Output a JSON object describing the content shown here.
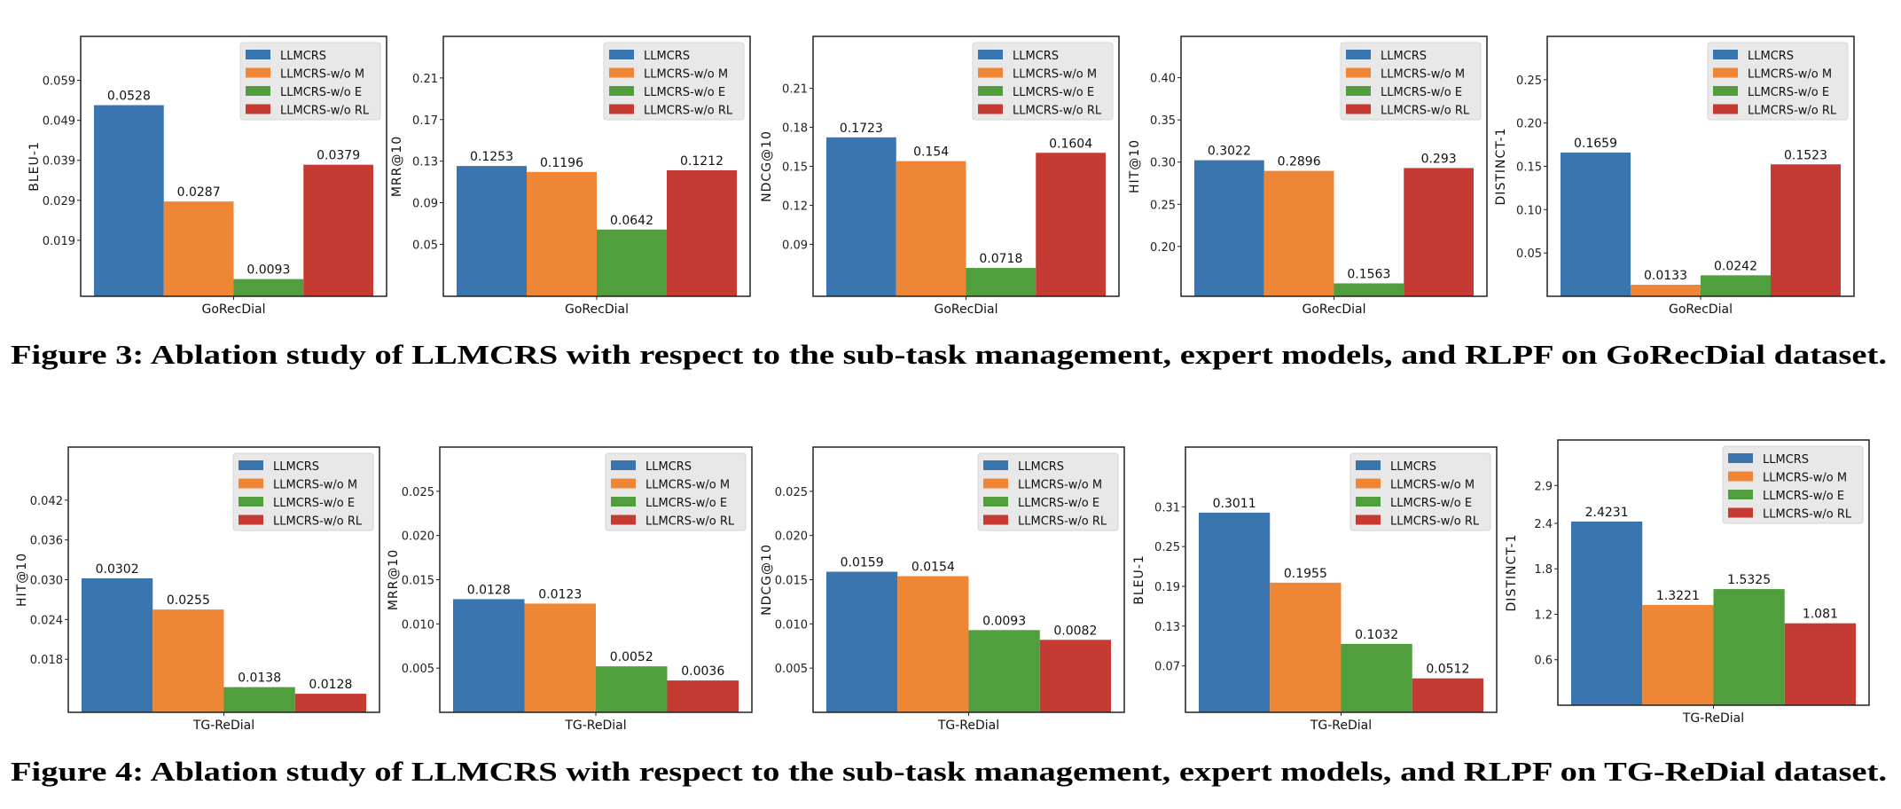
{
  "colors": {
    "LLMCRS": "#3a75af",
    "LLMCRS-w/o M": "#ef8636",
    "LLMCRS-w/o E": "#519e3e",
    "LLMCRS-w/o RL": "#c53a32"
  },
  "legend": [
    "LLMCRS",
    "LLMCRS-w/o M",
    "LLMCRS-w/o E",
    "LLMCRS-w/o RL"
  ],
  "figures": [
    {
      "caption": "Figure 3: Ablation study of LLMCRS with respect to the sub-task management, expert models, and RLPF on GoRecDial dataset."
    },
    {
      "caption": "Figure 4: Ablation study of LLMCRS with respect to the sub-task management, expert models, and RLPF on TG-ReDial dataset."
    }
  ],
  "chart_data": [
    {
      "type": "bar",
      "figure": 0,
      "categories": [
        "GoRecDial"
      ],
      "ylabel": "BLEU-1",
      "ylim": [
        0.005,
        0.07
      ],
      "yticks": [
        "0.019",
        "0.029",
        "0.039",
        "0.049",
        "0.059"
      ],
      "values": [
        0.0528,
        0.0287,
        0.0093,
        0.0379
      ],
      "labels": [
        "0.0528",
        "0.0287",
        "0.0093",
        "0.0379"
      ],
      "legend": "top-right"
    },
    {
      "type": "bar",
      "figure": 0,
      "categories": [
        "GoRecDial"
      ],
      "ylabel": "MRR@10",
      "ylim": [
        0.0,
        0.25
      ],
      "yticks": [
        "0.05",
        "0.09",
        "0.13",
        "0.17",
        "0.21"
      ],
      "values": [
        0.1253,
        0.1196,
        0.0642,
        0.1212
      ],
      "labels": [
        "0.1253",
        "0.1196",
        "0.0642",
        "0.1212"
      ],
      "legend": "top-right"
    },
    {
      "type": "bar",
      "figure": 0,
      "categories": [
        "GoRecDial"
      ],
      "ylabel": "NDCG@10",
      "ylim": [
        0.05,
        0.25
      ],
      "yticks": [
        "0.09",
        "0.12",
        "0.15",
        "0.18",
        "0.21"
      ],
      "values": [
        0.1723,
        0.154,
        0.0718,
        0.1604
      ],
      "labels": [
        "0.1723",
        "0.154",
        "0.0718",
        "0.1604"
      ],
      "legend": "top-right"
    },
    {
      "type": "bar",
      "figure": 0,
      "categories": [
        "GoRecDial"
      ],
      "ylabel": "HIT@10",
      "ylim": [
        0.141,
        0.449
      ],
      "yticks": [
        "0.20",
        "0.25",
        "0.30",
        "0.35",
        "0.40"
      ],
      "values": [
        0.3022,
        0.2896,
        0.1563,
        0.293
      ],
      "labels": [
        "0.3022",
        "0.2896",
        "0.1563",
        "0.293"
      ],
      "legend": "top-right"
    },
    {
      "type": "bar",
      "figure": 0,
      "categories": [
        "GoRecDial"
      ],
      "ylabel": "DISTINCT-1",
      "ylim": [
        0.0,
        0.3
      ],
      "yticks": [
        "0.05",
        "0.10",
        "0.15",
        "0.20",
        "0.25"
      ],
      "values": [
        0.1659,
        0.0133,
        0.0242,
        0.1523
      ],
      "labels": [
        "0.1659",
        "0.0133",
        "0.0242",
        "0.1523"
      ],
      "legend": "top-right"
    },
    {
      "type": "bar",
      "figure": 1,
      "categories": [
        "TG-ReDial"
      ],
      "ylabel": "HIT@10",
      "ylim": [
        0.01,
        0.05
      ],
      "yticks": [
        "0.018",
        "0.024",
        "0.030",
        "0.036",
        "0.042"
      ],
      "values": [
        0.0302,
        0.0255,
        0.0138,
        0.0128
      ],
      "labels": [
        "0.0302",
        "0.0255",
        "0.0138",
        "0.0128"
      ],
      "legend": "top-right"
    },
    {
      "type": "bar",
      "figure": 1,
      "categories": [
        "TG-ReDial"
      ],
      "ylabel": "MRR@10",
      "ylim": [
        0.0,
        0.03
      ],
      "yticks": [
        "0.005",
        "0.010",
        "0.015",
        "0.020",
        "0.025"
      ],
      "values": [
        0.0128,
        0.0123,
        0.0052,
        0.0036
      ],
      "labels": [
        "0.0128",
        "0.0123",
        "0.0052",
        "0.0036"
      ],
      "legend": "top-right"
    },
    {
      "type": "bar",
      "figure": 1,
      "categories": [
        "TG-ReDial"
      ],
      "ylabel": "NDCG@10",
      "ylim": [
        0.0,
        0.03
      ],
      "yticks": [
        "0.005",
        "0.010",
        "0.015",
        "0.020",
        "0.025"
      ],
      "values": [
        0.0159,
        0.0154,
        0.0093,
        0.0082
      ],
      "labels": [
        "0.0159",
        "0.0154",
        "0.0093",
        "0.0082"
      ],
      "legend": "top-right"
    },
    {
      "type": "bar",
      "figure": 1,
      "categories": [
        "TG-ReDial"
      ],
      "ylabel": "BLEU-1",
      "ylim": [
        0.0,
        0.4
      ],
      "yticks": [
        "0.07",
        "0.13",
        "0.19",
        "0.25",
        "0.31"
      ],
      "values": [
        0.3011,
        0.1955,
        0.1032,
        0.0512
      ],
      "labels": [
        "0.3011",
        "0.1955",
        "0.1032",
        "0.0512"
      ],
      "legend": "top-right"
    },
    {
      "type": "bar",
      "figure": 1,
      "categories": [
        "TG-ReDial"
      ],
      "ylabel": "DISTINCT-1",
      "ylim": [
        0.0,
        3.5
      ],
      "yticks": [
        "0.6",
        "1.2",
        "1.8",
        "2.4",
        "2.9"
      ],
      "values": [
        2.4231,
        1.3221,
        1.5325,
        1.081
      ],
      "labels": [
        "2.4231",
        "1.3221",
        "1.5325",
        "1.081"
      ],
      "legend": "top-right"
    }
  ]
}
